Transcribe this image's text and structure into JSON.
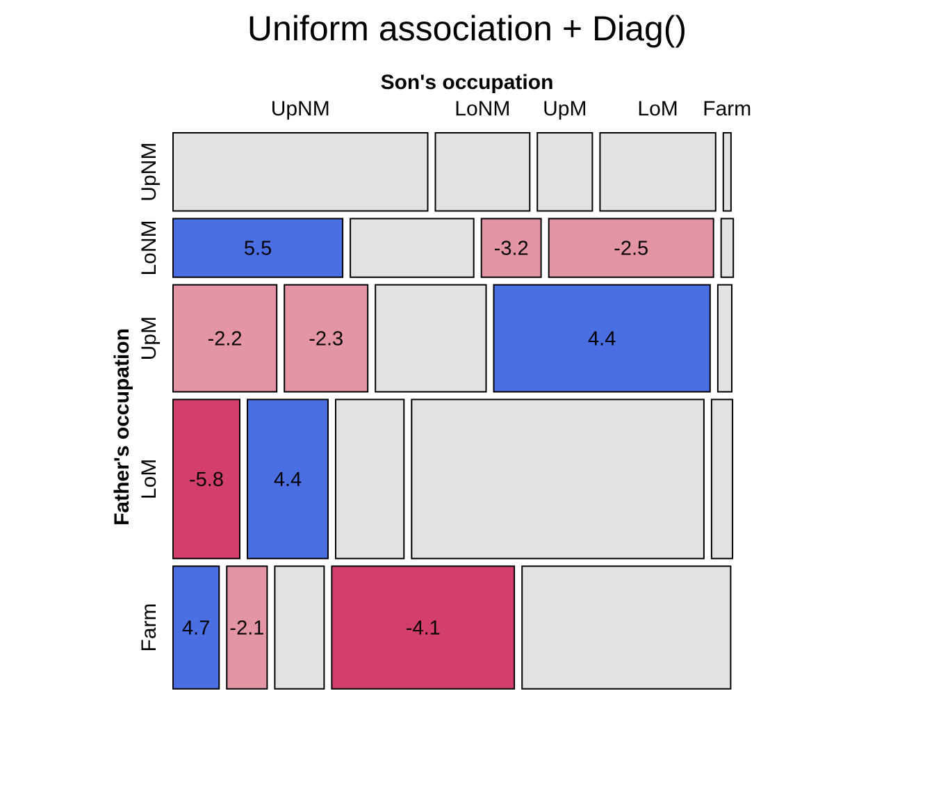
{
  "chart_data": {
    "type": "mosaic",
    "title": "Uniform association + Diag()",
    "xlabel": "Son's occupation",
    "ylabel": "Father's occupation",
    "col_categories": [
      "UpNM",
      "LoNM",
      "UpM",
      "LoM",
      "Farm"
    ],
    "row_categories": [
      "UpNM",
      "LoNM",
      "UpM",
      "LoM",
      "Farm"
    ],
    "row_margins": [
      0.1403,
      0.1052,
      0.1921,
      0.2856,
      0.2202
    ],
    "cell_proportions": [
      [
        0.4575,
        0.1695,
        0.0989,
        0.2077,
        0.0138
      ],
      [
        0.3048,
        0.2217,
        0.1073,
        0.2959,
        0.0218
      ],
      [
        0.1863,
        0.1498,
        0.1989,
        0.3887,
        0.0251
      ],
      [
        0.1199,
        0.1448,
        0.1227,
        0.5251,
        0.0377
      ],
      [
        0.0828,
        0.0725,
        0.0887,
        0.328,
        0.3748
      ]
    ],
    "residuals": [
      [
        null,
        null,
        null,
        null,
        null
      ],
      [
        5.5,
        null,
        -3.2,
        -2.5,
        null
      ],
      [
        -2.2,
        -2.3,
        null,
        4.4,
        null
      ],
      [
        -5.8,
        4.4,
        null,
        null,
        null
      ],
      [
        4.7,
        -2.1,
        null,
        -4.1,
        null
      ]
    ],
    "colors": {
      "strong_positive": "#4a6fe3",
      "weak_positive": "#9cb0ee",
      "neutral": "#e2e2e2",
      "weak_negative": "#e495a5",
      "strong_negative": "#d33f6a",
      "border": "#000000"
    }
  }
}
